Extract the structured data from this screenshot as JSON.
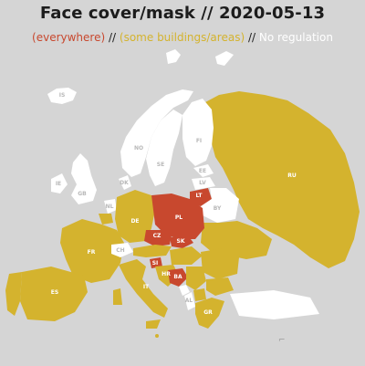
{
  "title": "Face cover/mask // 2020-05-13",
  "legend": {
    "everywhere": "(everywhere)",
    "some": "(some buildings/areas)",
    "none": "No regulation",
    "separator": "//"
  },
  "colors": {
    "everywhere": "#c8482e",
    "some": "#d4b32e",
    "none": "#ffffff",
    "background": "#d5d5d5",
    "non_europe": "#d5d5d5"
  },
  "countries": [
    {
      "code": "IS",
      "status": "none"
    },
    {
      "code": "NO",
      "status": "none"
    },
    {
      "code": "SE",
      "status": "none"
    },
    {
      "code": "FI",
      "status": "none"
    },
    {
      "code": "EE",
      "status": "none"
    },
    {
      "code": "LV",
      "status": "none"
    },
    {
      "code": "LT",
      "status": "everywhere"
    },
    {
      "code": "BY",
      "status": "none"
    },
    {
      "code": "RU",
      "status": "some"
    },
    {
      "code": "GB",
      "status": "none"
    },
    {
      "code": "IE",
      "status": "none"
    },
    {
      "code": "DK",
      "status": "none"
    },
    {
      "code": "NL",
      "status": "none"
    },
    {
      "code": "BE",
      "status": "some"
    },
    {
      "code": "DE",
      "status": "some"
    },
    {
      "code": "PL",
      "status": "everywhere"
    },
    {
      "code": "CZ",
      "status": "everywhere"
    },
    {
      "code": "SK",
      "status": "everywhere"
    },
    {
      "code": "AT",
      "status": "some"
    },
    {
      "code": "CH",
      "status": "none"
    },
    {
      "code": "FR",
      "status": "some"
    },
    {
      "code": "ES",
      "status": "some"
    },
    {
      "code": "PT",
      "status": "some"
    },
    {
      "code": "IT",
      "status": "some"
    },
    {
      "code": "SI",
      "status": "everywhere"
    },
    {
      "code": "HR",
      "status": "some"
    },
    {
      "code": "BA",
      "status": "everywhere"
    },
    {
      "code": "RS",
      "status": "some"
    },
    {
      "code": "ME",
      "status": "none"
    },
    {
      "code": "AL",
      "status": "none"
    },
    {
      "code": "MK",
      "status": "some"
    },
    {
      "code": "GR",
      "status": "some"
    },
    {
      "code": "BG",
      "status": "some"
    },
    {
      "code": "RO",
      "status": "some"
    },
    {
      "code": "HU",
      "status": "some"
    },
    {
      "code": "UA",
      "status": "some"
    },
    {
      "code": "MD",
      "status": "some"
    },
    {
      "code": "TR",
      "status": "none"
    },
    {
      "code": "CY",
      "status": "none"
    },
    {
      "code": "MT",
      "status": "some"
    }
  ]
}
